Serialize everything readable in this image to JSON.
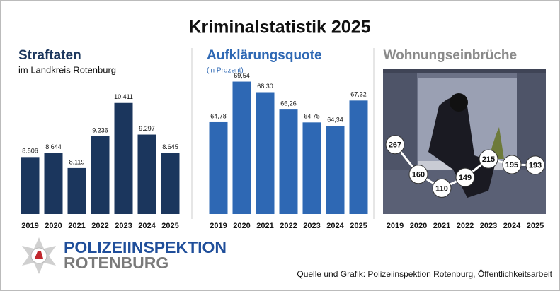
{
  "title": "Kriminalstatistik 2025",
  "chart_data": [
    {
      "type": "bar",
      "title": "Straftaten",
      "subtitle": "im Landkreis Rotenburg",
      "categories": [
        "2019",
        "2020",
        "2021",
        "2022",
        "2023",
        "2024",
        "2025"
      ],
      "values": [
        8506,
        8644,
        8119,
        9236,
        10411,
        9297,
        8645
      ],
      "value_labels": [
        "8.506",
        "8.644",
        "8.119",
        "9.236",
        "10.411",
        "9.297",
        "8.645"
      ],
      "color": "#1b365d",
      "ylim": [
        6500,
        11300
      ]
    },
    {
      "type": "bar",
      "title": "Aufklärungsquote",
      "subtitle": "(in Prozent)",
      "categories": [
        "2019",
        "2020",
        "2021",
        "2022",
        "2023",
        "2024",
        "2025"
      ],
      "values": [
        64.78,
        69.54,
        68.3,
        66.26,
        64.75,
        64.34,
        67.32
      ],
      "value_labels": [
        "64,78",
        "69,54",
        "68,30",
        "66,26",
        "64,75",
        "64,34",
        "67,32"
      ],
      "color": "#2e68b4",
      "ylim": [
        54,
        70
      ]
    },
    {
      "type": "line",
      "title": "Wohnungseinbrüche",
      "categories": [
        "2019",
        "2020",
        "2021",
        "2022",
        "2023",
        "2024",
        "2025"
      ],
      "values": [
        267,
        160,
        110,
        149,
        215,
        195,
        193
      ],
      "color": "#ffffff",
      "ylim": [
        50,
        330
      ]
    }
  ],
  "logo": {
    "line1": "POLIZEIINSPEKTION",
    "line2": "ROTENBURG"
  },
  "source": "Quelle und Grafik: Polizeiinspektion Rotenburg, Öffentlichkeitsarbeit"
}
